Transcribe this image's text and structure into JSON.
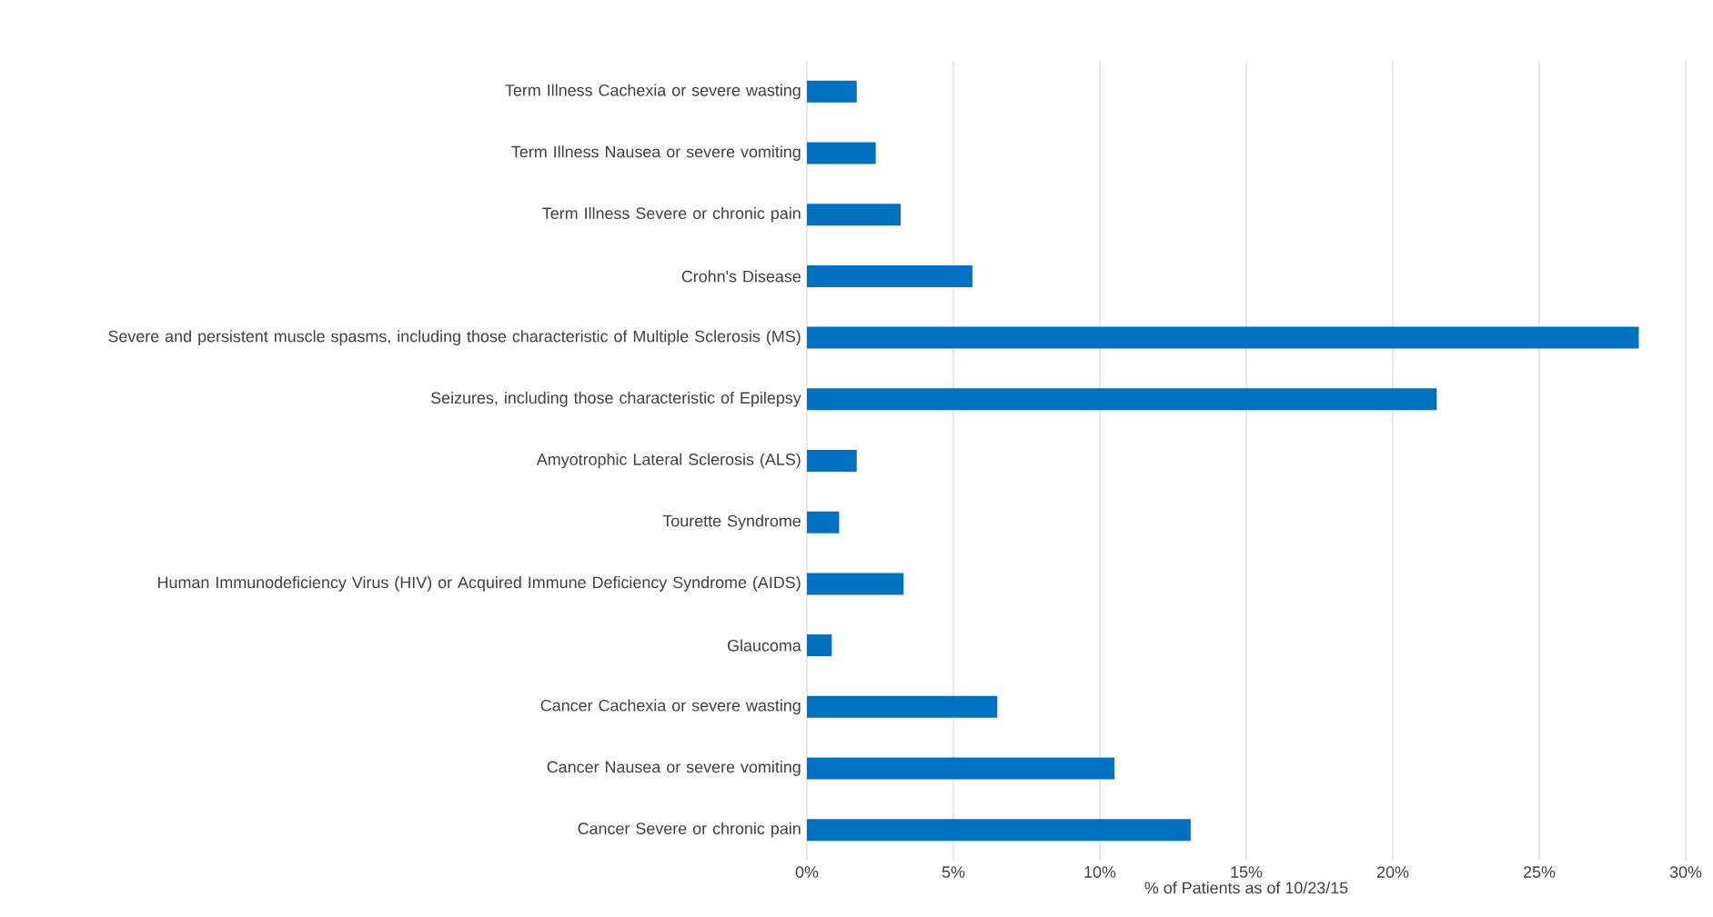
{
  "chart_data": {
    "type": "bar",
    "orientation": "horizontal",
    "xlabel": "% of Patients as of 10/23/15",
    "categories": [
      "Term Illness  Cachexia or severe wasting",
      "Term Illness Nausea or severe vomiting",
      "Term Illness Severe or chronic pain",
      "Crohn's Disease",
      "Severe and persistent muscle spasms, including those characteristic of Multiple Sclerosis (MS)",
      "Seizures, including those characteristic of Epilepsy",
      "Amyotrophic Lateral Sclerosis (ALS)",
      "Tourette Syndrome",
      "Human Immunodeficiency Virus (HIV) or Acquired Immune Deficiency Syndrome (AIDS)",
      "Glaucoma",
      "Cancer Cachexia or severe wasting",
      "Cancer Nausea or severe vomiting",
      "Cancer Severe or chronic pain"
    ],
    "values": [
      1.7,
      2.35,
      3.2,
      5.65,
      28.4,
      21.5,
      1.7,
      1.1,
      3.3,
      0.85,
      6.5,
      10.5,
      13.1
    ],
    "color": "#0070c0",
    "xlim": [
      0,
      30
    ],
    "xticks": [
      {
        "value": 0,
        "label": "0%"
      },
      {
        "value": 5,
        "label": "5%"
      },
      {
        "value": 10,
        "label": "10%"
      },
      {
        "value": 15,
        "label": "15%"
      },
      {
        "value": 20,
        "label": "20%"
      },
      {
        "value": 25,
        "label": "25%"
      },
      {
        "value": 30,
        "label": "30%"
      }
    ],
    "grid": "x"
  }
}
